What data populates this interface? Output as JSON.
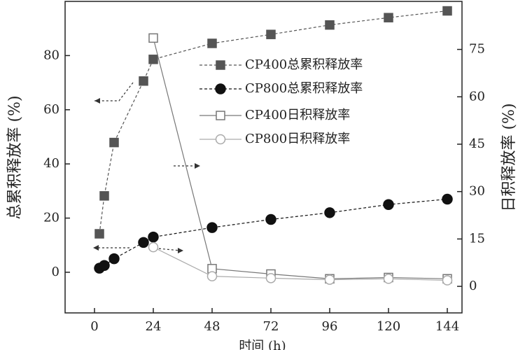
{
  "chart_data": {
    "type": "line",
    "xlabel": "时间 (h)",
    "ylabel": "总累积释放率 (%)",
    "y2label": "日积释放率 (%)",
    "xlim": [
      -12,
      150
    ],
    "xticks": [
      0,
      24,
      48,
      72,
      96,
      120,
      144
    ],
    "ylim": [
      -15,
      100
    ],
    "yticks": [
      0,
      20,
      40,
      60,
      80
    ],
    "y2lim": [
      -8.4,
      90.2
    ],
    "y2ticks": [
      0,
      15,
      30,
      45,
      60,
      75
    ],
    "legend": "upper right",
    "series": [
      {
        "name": "CP400总累积释放率",
        "color": "#555555",
        "marker": "square",
        "filled": true,
        "dash": true,
        "axis": "y",
        "x": [
          2,
          4,
          8,
          20,
          24,
          48,
          72,
          96,
          120,
          144
        ],
        "values": [
          14.2,
          28.2,
          47.9,
          70.6,
          78.6,
          84.5,
          87.8,
          91.3,
          94,
          96.5
        ]
      },
      {
        "name": "CP800总累积释放率",
        "color": "#111111",
        "marker": "circle",
        "filled": true,
        "dash": true,
        "axis": "y",
        "x": [
          2,
          4,
          8,
          20,
          24,
          48,
          72,
          96,
          120,
          144
        ],
        "values": [
          1.5,
          2.5,
          5,
          11,
          13,
          16.5,
          19.5,
          22,
          25,
          27
        ]
      },
      {
        "name": "CP400日积释放率",
        "color": "#777777",
        "marker": "square",
        "filled": false,
        "dash": false,
        "axis": "y2",
        "x": [
          24,
          48,
          72,
          96,
          120,
          144
        ],
        "values": [
          78.6,
          5.6,
          3.9,
          2.4,
          2.8,
          2.4
        ]
      },
      {
        "name": "CP800日积释放率",
        "color": "#aaaaaa",
        "marker": "circle",
        "filled": false,
        "dash": false,
        "axis": "y2",
        "x": [
          24,
          48,
          72,
          96,
          120,
          144
        ],
        "values": [
          12.4,
          3.2,
          2.6,
          2.1,
          2.4,
          1.9
        ]
      }
    ]
  }
}
